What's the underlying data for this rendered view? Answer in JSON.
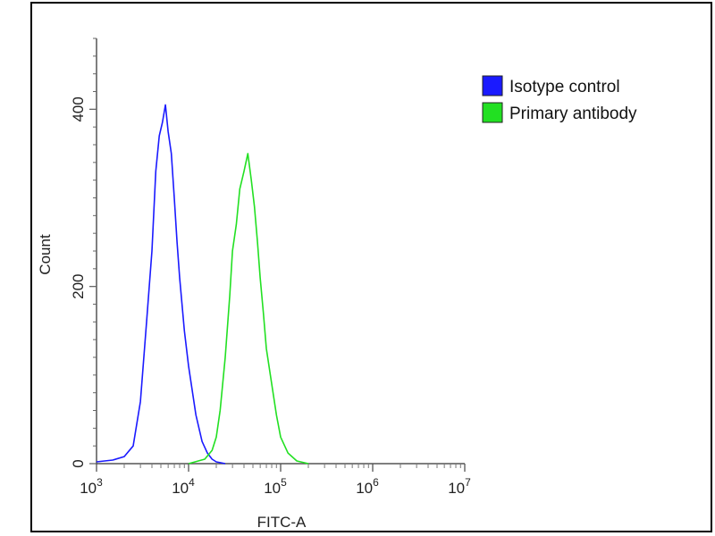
{
  "chart_data": {
    "type": "line",
    "xlabel": "FITC-A",
    "ylabel": "Count",
    "x_scale": "log",
    "xlim": [
      1000,
      10000000
    ],
    "ylim": [
      0,
      480
    ],
    "x_ticks": [
      {
        "value": 1000,
        "base": "10",
        "exp": "3"
      },
      {
        "value": 10000,
        "base": "10",
        "exp": "4"
      },
      {
        "value": 100000,
        "base": "10",
        "exp": "5"
      },
      {
        "value": 1000000,
        "base": "10",
        "exp": "6"
      },
      {
        "value": 10000000,
        "base": "10",
        "exp": "7"
      }
    ],
    "y_ticks": [
      {
        "value": 0,
        "label": "0"
      },
      {
        "value": 200,
        "label": "200"
      },
      {
        "value": 400,
        "label": "400"
      }
    ],
    "legend_position": "right",
    "series": [
      {
        "name": "Isotype control",
        "color": "#1a1aff",
        "x": [
          1000,
          1500,
          2000,
          2500,
          3000,
          3500,
          4000,
          4400,
          4800,
          5200,
          5600,
          6000,
          6500,
          7000,
          7500,
          8000,
          9000,
          10000,
          12000,
          14000,
          16000,
          18000,
          20000,
          25000
        ],
        "y": [
          2,
          4,
          8,
          20,
          70,
          160,
          240,
          330,
          370,
          385,
          405,
          375,
          350,
          300,
          250,
          210,
          150,
          110,
          55,
          25,
          12,
          5,
          2,
          0
        ]
      },
      {
        "name": "Primary antibody",
        "color": "#22e022",
        "x": [
          10000,
          15000,
          18000,
          20000,
          22000,
          25000,
          28000,
          30000,
          33000,
          36000,
          40000,
          44000,
          48000,
          52000,
          56000,
          60000,
          65000,
          70000,
          80000,
          90000,
          100000,
          120000,
          150000,
          200000
        ],
        "y": [
          0,
          5,
          15,
          30,
          60,
          120,
          190,
          240,
          270,
          310,
          330,
          350,
          320,
          290,
          250,
          210,
          170,
          130,
          90,
          55,
          30,
          12,
          3,
          0
        ]
      }
    ]
  }
}
